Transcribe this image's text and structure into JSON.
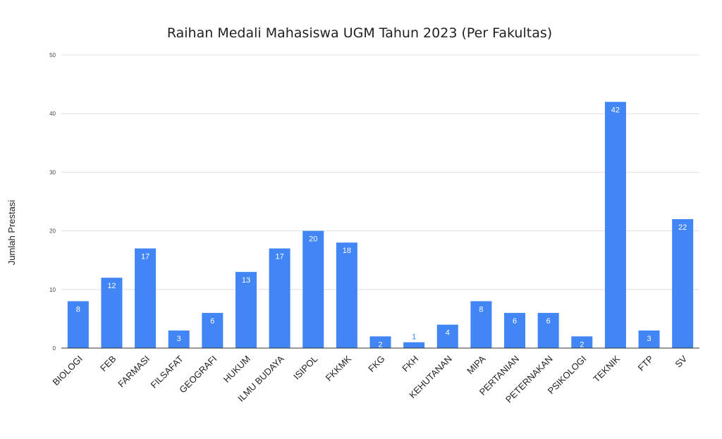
{
  "chart_data": {
    "type": "bar",
    "title": "Raihan Medali Mahasiswa UGM Tahun 2023 (Per Fakultas)",
    "xlabel": "",
    "ylabel": "Jumlah Prestasi",
    "ylim": [
      0,
      50
    ],
    "yticks": [
      0,
      10,
      20,
      30,
      40,
      50
    ],
    "grid": true,
    "legend": "none",
    "bar_color": "#4285f4",
    "categories": [
      "BIOLOGI",
      "FEB",
      "FARMASI",
      "FILSAFAT",
      "GEOGRAFI",
      "HUKUM",
      "ILMU BUDAYA",
      "ISIPOL",
      "FKKMK",
      "FKG",
      "FKH",
      "KEHUTANAN",
      "MIPA",
      "PERTANIAN",
      "PETERNAKAN",
      "PSIKOLOGI",
      "TEKNIK",
      "FTP",
      "SV"
    ],
    "values": [
      8,
      12,
      17,
      3,
      6,
      13,
      17,
      20,
      18,
      2,
      1,
      4,
      8,
      6,
      6,
      2,
      42,
      3,
      22
    ]
  }
}
